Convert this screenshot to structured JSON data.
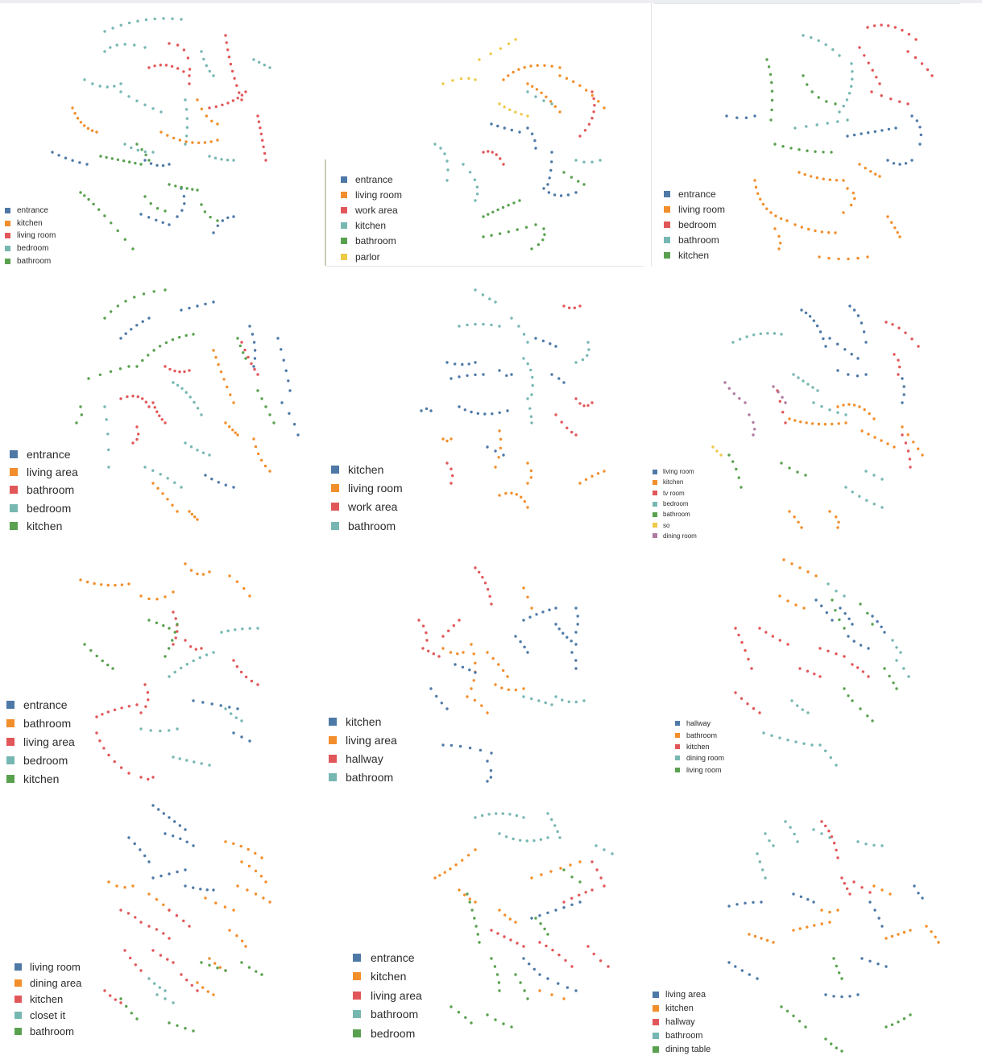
{
  "colors": {
    "blue": "#4e79a7",
    "orange": "#f28e2b",
    "red": "#e15759",
    "teal": "#76b7b2",
    "green": "#59a14f",
    "yellow": "#edc948",
    "purple": "#b07aa1"
  },
  "chart_data": [
    {
      "type": "scatter",
      "legend": [
        {
          "label": "entrance",
          "color": "#4e79a7"
        },
        {
          "label": "kitchen",
          "color": "#f28e2b"
        },
        {
          "label": "living room",
          "color": "#e15759"
        },
        {
          "label": "bedroom",
          "color": "#76b7b2"
        },
        {
          "label": "bathroom",
          "color": "#59a14f"
        }
      ]
    },
    {
      "type": "scatter",
      "legend": [
        {
          "label": "entrance",
          "color": "#4e79a7"
        },
        {
          "label": "living room",
          "color": "#f28e2b"
        },
        {
          "label": "work area",
          "color": "#e15759"
        },
        {
          "label": "kitchen",
          "color": "#76b7b2"
        },
        {
          "label": "bathroom",
          "color": "#59a14f"
        },
        {
          "label": "parlor",
          "color": "#edc948"
        }
      ]
    },
    {
      "type": "scatter",
      "legend": [
        {
          "label": "entrance",
          "color": "#4e79a7"
        },
        {
          "label": "living room",
          "color": "#f28e2b"
        },
        {
          "label": "bedroom",
          "color": "#e15759"
        },
        {
          "label": "bathroom",
          "color": "#76b7b2"
        },
        {
          "label": "kitchen",
          "color": "#59a14f"
        }
      ]
    },
    {
      "type": "scatter",
      "legend": [
        {
          "label": "entrance",
          "color": "#4e79a7"
        },
        {
          "label": "living area",
          "color": "#f28e2b"
        },
        {
          "label": "bathroom",
          "color": "#e15759"
        },
        {
          "label": "bedroom",
          "color": "#76b7b2"
        },
        {
          "label": "kitchen",
          "color": "#59a14f"
        }
      ]
    },
    {
      "type": "scatter",
      "legend": [
        {
          "label": "kitchen",
          "color": "#4e79a7"
        },
        {
          "label": "living room",
          "color": "#f28e2b"
        },
        {
          "label": "work area",
          "color": "#e15759"
        },
        {
          "label": "bathroom",
          "color": "#76b7b2"
        }
      ]
    },
    {
      "type": "scatter",
      "legend": [
        {
          "label": "living room",
          "color": "#4e79a7"
        },
        {
          "label": "kitchen",
          "color": "#f28e2b"
        },
        {
          "label": "tv room",
          "color": "#e15759"
        },
        {
          "label": "bedroom",
          "color": "#76b7b2"
        },
        {
          "label": "bathroom",
          "color": "#59a14f"
        },
        {
          "label": "so",
          "color": "#edc948"
        },
        {
          "label": "dining room",
          "color": "#b07aa1"
        }
      ]
    },
    {
      "type": "scatter",
      "legend": [
        {
          "label": "entrance",
          "color": "#4e79a7"
        },
        {
          "label": "bathroom",
          "color": "#f28e2b"
        },
        {
          "label": "living area",
          "color": "#e15759"
        },
        {
          "label": "bedroom",
          "color": "#76b7b2"
        },
        {
          "label": "kitchen",
          "color": "#59a14f"
        }
      ]
    },
    {
      "type": "scatter",
      "legend": [
        {
          "label": "kitchen",
          "color": "#4e79a7"
        },
        {
          "label": "living area",
          "color": "#f28e2b"
        },
        {
          "label": "hallway",
          "color": "#e15759"
        },
        {
          "label": "bathroom",
          "color": "#76b7b2"
        }
      ]
    },
    {
      "type": "scatter",
      "legend": [
        {
          "label": "hallway",
          "color": "#4e79a7"
        },
        {
          "label": "bathroom",
          "color": "#f28e2b"
        },
        {
          "label": "kitchen",
          "color": "#e15759"
        },
        {
          "label": "dining room",
          "color": "#76b7b2"
        },
        {
          "label": "living room",
          "color": "#59a14f"
        }
      ]
    },
    {
      "type": "scatter",
      "legend": [
        {
          "label": "living room",
          "color": "#4e79a7"
        },
        {
          "label": "dining area",
          "color": "#f28e2b"
        },
        {
          "label": "kitchen",
          "color": "#e15759"
        },
        {
          "label": "closet it",
          "color": "#76b7b2"
        },
        {
          "label": "bathroom",
          "color": "#59a14f"
        }
      ]
    },
    {
      "type": "scatter",
      "legend": [
        {
          "label": "entrance",
          "color": "#4e79a7"
        },
        {
          "label": "kitchen",
          "color": "#f28e2b"
        },
        {
          "label": "living area",
          "color": "#e15759"
        },
        {
          "label": "bathroom",
          "color": "#76b7b2"
        },
        {
          "label": "bedroom",
          "color": "#59a14f"
        }
      ]
    },
    {
      "type": "scatter",
      "legend": [
        {
          "label": "living area",
          "color": "#4e79a7"
        },
        {
          "label": "kitchen",
          "color": "#f28e2b"
        },
        {
          "label": "hallway",
          "color": "#e15759"
        },
        {
          "label": "bathroom",
          "color": "#76b7b2"
        },
        {
          "label": "dining table",
          "color": "#59a14f"
        }
      ]
    }
  ]
}
